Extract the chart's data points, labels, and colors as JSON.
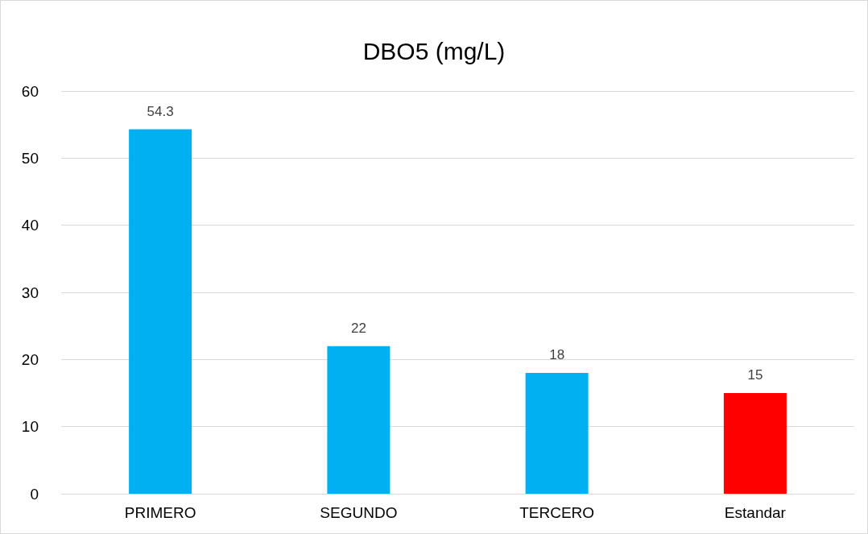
{
  "chart_data": {
    "type": "bar",
    "title": "DBO5 (mg/L)",
    "categories": [
      "PRIMERO",
      "SEGUNDO",
      "TERCERO",
      "Estandar"
    ],
    "values": [
      54.3,
      22,
      18,
      15
    ],
    "colors": [
      "#00b0f0",
      "#00b0f0",
      "#00b0f0",
      "#ff0000"
    ],
    "ylim": [
      0,
      60
    ],
    "yticks": [
      0,
      10,
      20,
      30,
      40,
      50,
      60
    ],
    "grid": "y",
    "data_labels": true
  }
}
